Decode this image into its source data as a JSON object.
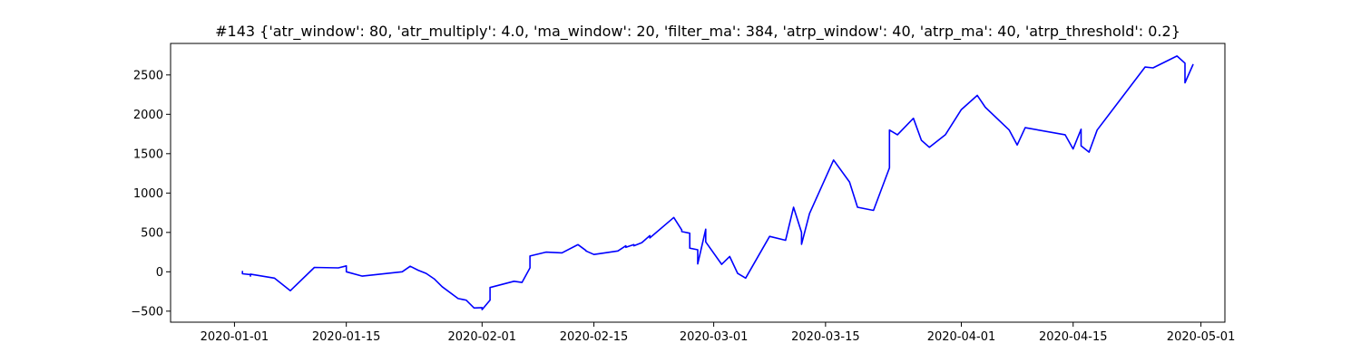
{
  "chart_data": {
    "type": "line",
    "title": "#143 {'atr_window': 80, 'atr_multiply': 4.0, 'ma_window': 20, 'filter_ma': 384, 'atrp_window': 40, 'atrp_ma': 40, 'atrp_threshold': 0.2}",
    "xlabel": "",
    "ylabel": "",
    "x_scale": "date",
    "xlim": [
      "2019-12-24",
      "2020-05-04"
    ],
    "ylim": [
      -640,
      2900
    ],
    "x_ticks": [
      "2020-01-01",
      "2020-01-15",
      "2020-02-01",
      "2020-02-15",
      "2020-03-01",
      "2020-03-15",
      "2020-04-01",
      "2020-04-15",
      "2020-05-01"
    ],
    "y_ticks": [
      -500,
      0,
      500,
      1000,
      1500,
      2000,
      2500
    ],
    "grid": false,
    "legend": "none",
    "series": [
      {
        "color": "#0000ff",
        "points": [
          [
            "2020-01-02",
            0
          ],
          [
            "2020-01-02",
            -15
          ],
          [
            "2020-01-02",
            5
          ],
          [
            "2020-01-02",
            -25
          ],
          [
            "2020-01-03",
            -35
          ],
          [
            "2020-01-03",
            -55
          ],
          [
            "2020-01-03",
            -40
          ],
          [
            "2020-01-03",
            -30
          ],
          [
            "2020-01-06",
            -80
          ],
          [
            "2020-01-08",
            -240
          ],
          [
            "2020-01-11",
            55
          ],
          [
            "2020-01-14",
            50
          ],
          [
            "2020-01-15",
            75
          ],
          [
            "2020-01-15",
            0
          ],
          [
            "2020-01-17",
            -55
          ],
          [
            "2020-01-22",
            0
          ],
          [
            "2020-01-23",
            70
          ],
          [
            "2020-01-24",
            20
          ],
          [
            "2020-01-25",
            -20
          ],
          [
            "2020-01-26",
            -90
          ],
          [
            "2020-01-27",
            -190
          ],
          [
            "2020-01-29",
            -340
          ],
          [
            "2020-01-30",
            -360
          ],
          [
            "2020-01-31",
            -460
          ],
          [
            "2020-02-01",
            -455
          ],
          [
            "2020-02-01",
            -480
          ],
          [
            "2020-02-02",
            -360
          ],
          [
            "2020-02-02",
            -200
          ],
          [
            "2020-02-05",
            -120
          ],
          [
            "2020-02-06",
            -135
          ],
          [
            "2020-02-07",
            50
          ],
          [
            "2020-02-07",
            200
          ],
          [
            "2020-02-09",
            250
          ],
          [
            "2020-02-11",
            240
          ],
          [
            "2020-02-13",
            345
          ],
          [
            "2020-02-14",
            270
          ],
          [
            "2020-02-14",
            265
          ],
          [
            "2020-02-15",
            220
          ],
          [
            "2020-02-18",
            265
          ],
          [
            "2020-02-19",
            330
          ],
          [
            "2020-02-19",
            310
          ],
          [
            "2020-02-20",
            345
          ],
          [
            "2020-02-20",
            330
          ],
          [
            "2020-02-21",
            370
          ],
          [
            "2020-02-22",
            460
          ],
          [
            "2020-02-22",
            430
          ],
          [
            "2020-02-25",
            690
          ],
          [
            "2020-02-26",
            530
          ],
          [
            "2020-02-26",
            510
          ],
          [
            "2020-02-27",
            490
          ],
          [
            "2020-02-27",
            300
          ],
          [
            "2020-02-28",
            280
          ],
          [
            "2020-02-28",
            100
          ],
          [
            "2020-02-29",
            540
          ],
          [
            "2020-02-29",
            380
          ],
          [
            "2020-03-02",
            95
          ],
          [
            "2020-03-03",
            195
          ],
          [
            "2020-03-04",
            -20
          ],
          [
            "2020-03-05",
            -80
          ],
          [
            "2020-03-08",
            450
          ],
          [
            "2020-03-10",
            400
          ],
          [
            "2020-03-11",
            820
          ],
          [
            "2020-03-12",
            500
          ],
          [
            "2020-03-12",
            350
          ],
          [
            "2020-03-13",
            740
          ],
          [
            "2020-03-16",
            1420
          ],
          [
            "2020-03-18",
            1140
          ],
          [
            "2020-03-19",
            820
          ],
          [
            "2020-03-21",
            780
          ],
          [
            "2020-03-23",
            1320
          ],
          [
            "2020-03-23",
            1800
          ],
          [
            "2020-03-24",
            1740
          ],
          [
            "2020-03-26",
            1950
          ],
          [
            "2020-03-27",
            1670
          ],
          [
            "2020-03-28",
            1580
          ],
          [
            "2020-03-30",
            1740
          ],
          [
            "2020-04-01",
            2060
          ],
          [
            "2020-04-03",
            2240
          ],
          [
            "2020-04-04",
            2090
          ],
          [
            "2020-04-07",
            1800
          ],
          [
            "2020-04-08",
            1610
          ],
          [
            "2020-04-09",
            1830
          ],
          [
            "2020-04-14",
            1740
          ],
          [
            "2020-04-15",
            1560
          ],
          [
            "2020-04-16",
            1810
          ],
          [
            "2020-04-16",
            1720
          ],
          [
            "2020-04-16",
            1600
          ],
          [
            "2020-04-17",
            1520
          ],
          [
            "2020-04-18",
            1800
          ],
          [
            "2020-04-24",
            2600
          ],
          [
            "2020-04-25",
            2590
          ],
          [
            "2020-04-28",
            2740
          ],
          [
            "2020-04-29",
            2650
          ],
          [
            "2020-04-29",
            2400
          ],
          [
            "2020-04-30",
            2630
          ]
        ]
      }
    ]
  }
}
